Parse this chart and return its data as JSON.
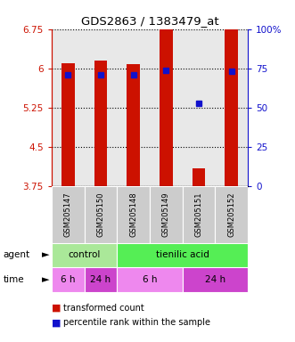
{
  "title": "GDS2863 / 1383479_at",
  "samples": [
    "GSM205147",
    "GSM205150",
    "GSM205148",
    "GSM205149",
    "GSM205151",
    "GSM205152"
  ],
  "bar_heights": [
    6.1,
    6.15,
    6.08,
    6.75,
    4.1,
    6.75
  ],
  "bar_base": 3.75,
  "blue_square_values": [
    5.88,
    5.88,
    5.87,
    5.97,
    5.33,
    5.95
  ],
  "ylim_left": [
    3.75,
    6.75
  ],
  "yticks_left": [
    3.75,
    4.5,
    5.25,
    6.0,
    6.75
  ],
  "ytick_labels_left": [
    "3.75",
    "4.5",
    "5.25",
    "6",
    "6.75"
  ],
  "ylim_right": [
    0,
    100
  ],
  "yticks_right": [
    0,
    25,
    50,
    75,
    100
  ],
  "ytick_labels_right": [
    "0",
    "25",
    "50",
    "75",
    "100%"
  ],
  "bar_color": "#cc1100",
  "blue_color": "#1111cc",
  "bar_width": 0.4,
  "legend_red_label": "transformed count",
  "legend_blue_label": "percentile rank within the sample",
  "bg_color": "#ffffff",
  "plot_bg_color": "#e8e8e8",
  "ctrl_color": "#aae899",
  "tienilic_color": "#55ee55",
  "time_light_color": "#ee88ee",
  "time_dark_color": "#cc44cc"
}
